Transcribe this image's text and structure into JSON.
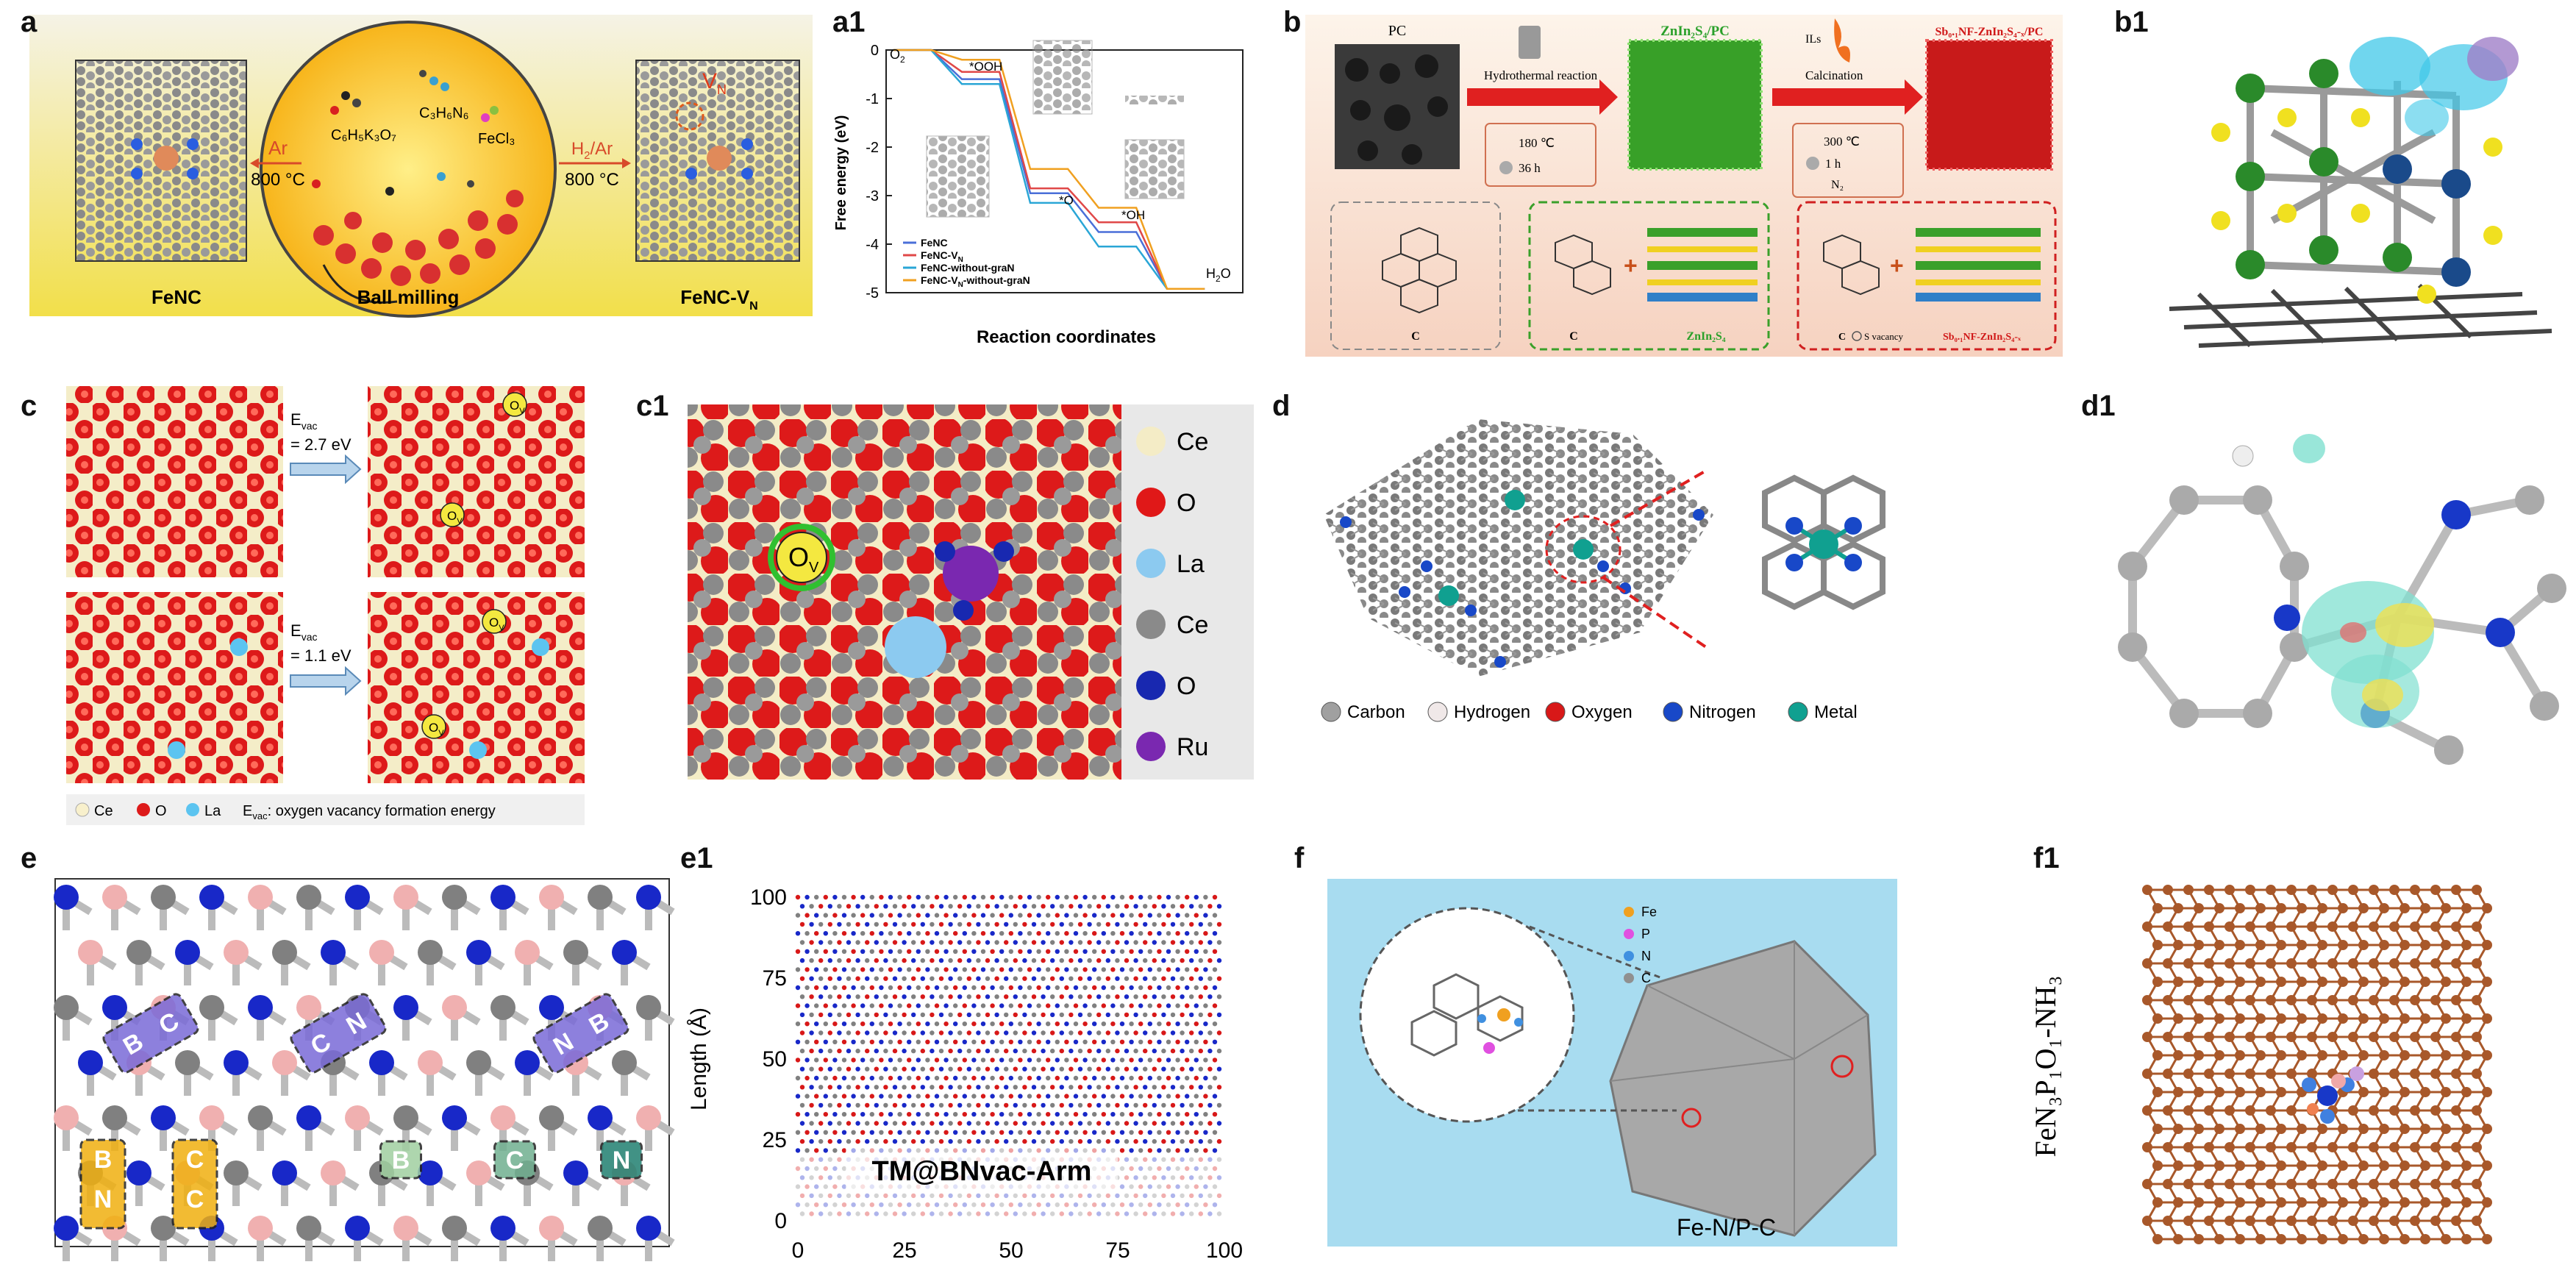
{
  "panel_labels": {
    "a": "a",
    "a1": "a1",
    "b": "b",
    "b1": "b1",
    "c": "c",
    "c1": "c1",
    "d": "d",
    "d1": "d1",
    "e": "e",
    "e1": "e1",
    "f": "f",
    "f1": "f1"
  },
  "panel_a": {
    "left_box": "FeNC",
    "right_box": "FeNC-V",
    "right_box_sub": "N",
    "vacancy_label": "V",
    "vacancy_sub": "N",
    "center_caption": "Ball milling",
    "arrow_left_gas": "Ar",
    "arrow_left_temp": "800 °C",
    "arrow_right_gas": "H",
    "arrow_right_gas_sub": "2",
    "arrow_right_gas_tail": "/Ar",
    "arrow_right_temp": "800 °C",
    "reagent_1": "C₆H₅K₃O₇",
    "reagent_2": "C₃H₆N₆",
    "reagent_3": "FeCl₃"
  },
  "chart_data": {
    "type": "line",
    "title": "",
    "xlabel": "Reaction coordinates",
    "ylabel": "Free energy (eV)",
    "ylim": [
      -5,
      0
    ],
    "yticks": [
      "0",
      "-1",
      "-2",
      "-3",
      "-4",
      "-5"
    ],
    "x": [
      "O2",
      "*OOH",
      "*O",
      "*OH",
      "H2O"
    ],
    "state_labels": {
      "o2": "O",
      "o2_sub": "2",
      "ooh": "*OOH",
      "o": "*O",
      "oh": "*OH",
      "h2o": "H",
      "h2o_sub": "2",
      "h2o_tail": "O"
    },
    "series": [
      {
        "name": "FeNC",
        "color": "#4a6fd8",
        "values": [
          0,
          -0.6,
          -2.95,
          -3.75,
          -4.92
        ]
      },
      {
        "name": "FeNC-V_N",
        "color": "#e04848",
        "values": [
          0,
          -0.45,
          -2.85,
          -3.55,
          -4.92
        ]
      },
      {
        "name": "FeNC-without-graN",
        "color": "#2aa6d6",
        "values": [
          0,
          -0.7,
          -3.15,
          -4.05,
          -4.92
        ]
      },
      {
        "name": "FeNC-V_N-without-graN",
        "color": "#f0a020",
        "values": [
          0,
          -0.2,
          -2.45,
          -3.25,
          -4.92
        ]
      }
    ],
    "legend": [
      "FeNC",
      "FeNC-V",
      "FeNC-without-graN",
      "FeNC-V"
    ],
    "legend_subs": [
      "",
      "N",
      "",
      "N"
    ],
    "legend_tails": [
      "",
      "",
      "",
      "-without-graN"
    ]
  },
  "panel_b": {
    "step1_material": "PC",
    "step1_arrow": "Hydrothermal reaction",
    "step1_temp": "180 ℃",
    "step1_time": "36 h",
    "step2_material": "ZnIn₂S₄/PC",
    "step2_arrow": "Calcination",
    "step2_arrow_top": "ILs",
    "step2_temp": "300 ℃",
    "step2_time": "1 h",
    "step2_gas": "N₂",
    "step3_material": "Sb₀.₁NF-ZnIn₂S₄-ₓ/PC",
    "box1_label": "C",
    "box2_label_c": "C",
    "box2_label_z": "ZnIn₂S₄",
    "box3_label_c": "C",
    "box3_label_sv": "S vacancy",
    "box3_label_z": "Sb₀.₁NF-ZnIn₂S₄-ₓ"
  },
  "panel_c": {
    "evac_top": "E",
    "evac_top_sub": "vac",
    "evac_top_val": "= 2.7 eV",
    "evac_bot": "E",
    "evac_bot_sub": "vac",
    "evac_bot_val": "= 1.1 eV",
    "ov": "O",
    "ov_sub": "V",
    "legend_ce": "Ce",
    "legend_o": "O",
    "legend_la": "La",
    "legend_note": "E",
    "legend_note_sub": "vac",
    "legend_note_tail": ": oxygen vacancy formation energy"
  },
  "panel_c1": {
    "ov": "O",
    "ov_sub": "V",
    "legend": [
      "Ce",
      "O",
      "La",
      "Ce",
      "O",
      "Ru"
    ],
    "legend_colors": [
      "#f4ecc6",
      "#e01818",
      "#8ccaf0",
      "#8a8a8a",
      "#1828b0",
      "#7a28b0"
    ]
  },
  "panel_d": {
    "legend": [
      "Carbon",
      "Hydrogen",
      "Oxygen",
      "Nitrogen",
      "Metal"
    ],
    "legend_colors": [
      "#a0a0a0",
      "#f0e8e8",
      "#d81818",
      "#1848c8",
      "#10a090"
    ]
  },
  "panel_e": {
    "tags": [
      "B",
      "C",
      "C",
      "N",
      "N",
      "B",
      "B",
      "N",
      "C",
      "C",
      "B",
      "C",
      "N"
    ]
  },
  "panel_e1": {
    "ylabel": "Length (Å)",
    "yticks": [
      "0",
      "25",
      "50",
      "75",
      "100"
    ],
    "xticks": [
      "0",
      "25",
      "50",
      "75",
      "100"
    ],
    "caption": "TM@BNvac-Arm"
  },
  "panel_f": {
    "legend": [
      "Fe",
      "P",
      "N",
      "C"
    ],
    "legend_colors": [
      "#f0a020",
      "#e050e0",
      "#4090e0",
      "#909090"
    ],
    "caption": "Fe-N/P-C"
  },
  "panel_f1": {
    "formula": "FeN₃P₁O₁-NH₃"
  }
}
